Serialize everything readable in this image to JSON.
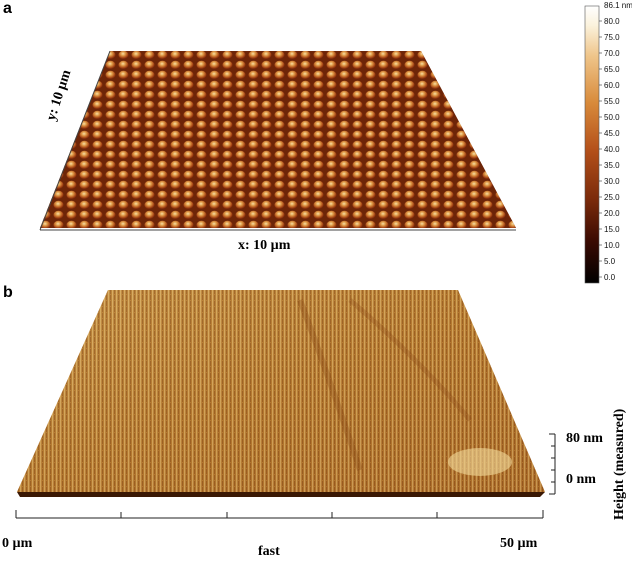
{
  "panel_a": {
    "letter": "a",
    "x_label": "x: 10 µm",
    "y_label": "y: 10 µm",
    "colorbar": {
      "max_label": "86.1 nm",
      "ticks": [
        "80.0",
        "75.0",
        "70.0",
        "65.0",
        "60.0",
        "55.0",
        "50.0",
        "45.0",
        "40.0",
        "35.0",
        "30.0",
        "25.0",
        "20.0",
        "15.0",
        "10.0",
        "5.0",
        "0.0"
      ],
      "colors": [
        "#000000",
        "#3a0a02",
        "#7a2a0a",
        "#b4501a",
        "#d88a3a",
        "#efc58a",
        "#fbf2dc",
        "#ffffff"
      ]
    }
  },
  "panel_b": {
    "letter": "b",
    "x_start": "0 µm",
    "x_end": "50 µm",
    "x_label": "fast",
    "z_min": "0 nm",
    "z_max": "80 nm",
    "z_label": "Height (measured)"
  }
}
